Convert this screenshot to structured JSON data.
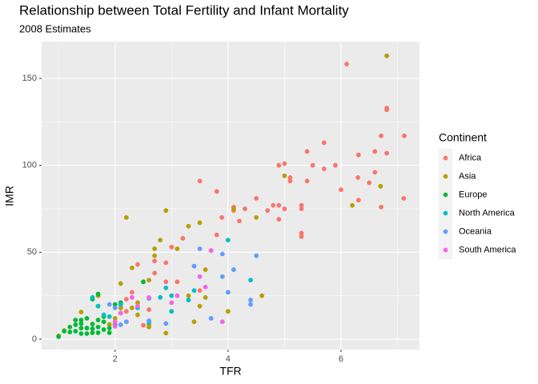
{
  "chart_data": {
    "type": "scatter",
    "title": "Relationship between Total Fertility and Infant Mortality",
    "subtitle": "2008 Estimates",
    "x_label": "TFR",
    "y_label": "IMR",
    "legend_title": "Continent",
    "legend_position": "right",
    "grid": true,
    "xlim": [
      0.7,
      7.39
    ],
    "ylim": [
      -6,
      171.2
    ],
    "xticks": [
      2,
      4,
      6
    ],
    "yticks": [
      0,
      50,
      100,
      150
    ],
    "x_minor_ticks": [
      1,
      3,
      5,
      7
    ],
    "y_minor_ticks": [
      25,
      75,
      125
    ],
    "series": [
      {
        "name": "Africa",
        "color": "#F8766D",
        "x": [
          6.1,
          6.81,
          6.81,
          6.81,
          6.6,
          6.6,
          6.71,
          7.12,
          7.11,
          6.71,
          6.3,
          6.5,
          6.31,
          6.31,
          5.9,
          6.0,
          5.7,
          5.5,
          5.4,
          5.7,
          5.4,
          5.3,
          5.3,
          5.3,
          5.3,
          5.1,
          5.1,
          5.0,
          4.9,
          4.9,
          5.0,
          4.9,
          4.8,
          4.7,
          4.5,
          4.3,
          4.1,
          4.1,
          4.2,
          3.89,
          3.8,
          3.8,
          3.5,
          3.7,
          3.5,
          3.2,
          3.0,
          3.1,
          2.9,
          2.9,
          2.7,
          2.7,
          2.4,
          2.3,
          2.2,
          2.1,
          2.2,
          2.5,
          2.2,
          2.6
        ],
        "y": [
          158.3,
          133,
          132,
          107,
          96,
          108,
          117,
          117,
          81,
          76,
          93,
          90,
          106,
          80,
          100,
          86,
          98,
          100,
          108,
          113,
          91,
          77,
          75,
          61,
          59,
          93,
          91,
          101,
          100,
          77,
          75,
          69,
          77,
          74,
          81,
          75,
          76,
          74,
          68,
          70,
          85,
          60,
          91,
          51,
          28,
          58,
          53,
          33,
          33,
          44,
          45,
          38,
          43,
          27,
          23,
          18,
          10,
          8,
          16,
          17
        ]
      },
      {
        "name": "Asia",
        "color": "#B79F00",
        "x": [
          6.81,
          6.7,
          6.2,
          5.0,
          4.5,
          4.1,
          4.6,
          3.5,
          3.3,
          2.9,
          2.2,
          2.8,
          2.7,
          3.1,
          2.7,
          2.3,
          2.1,
          2.5,
          2.6,
          2.9,
          3.4,
          3.5,
          3.6,
          3.3,
          3.6,
          4.0,
          2.6,
          2.4,
          2.4,
          2.3,
          2.1,
          2.0,
          1.9,
          1.7,
          1.4,
          1.1,
          1.0,
          1.7,
          2.6
        ],
        "y": [
          163,
          88,
          77,
          94,
          70,
          75,
          25,
          67,
          65,
          74,
          70,
          57,
          52,
          52,
          48,
          41,
          32,
          33,
          34,
          3.5,
          10,
          19,
          24,
          25,
          40,
          16,
          8.5,
          14,
          21,
          18,
          18,
          12,
          8.5,
          25,
          15.6,
          5,
          2,
          19,
          7
        ]
      },
      {
        "name": "Europe",
        "color": "#00BA38",
        "x": [
          1.0,
          1.1,
          1.2,
          1.3,
          1.3,
          1.3,
          1.4,
          1.4,
          1.4,
          1.5,
          1.5,
          1.5,
          1.6,
          1.6,
          1.6,
          1.7,
          1.7,
          1.7,
          1.8,
          1.8,
          1.9,
          1.9,
          2.0,
          2.0,
          2.1,
          2.1,
          2.5,
          1.6,
          1.7,
          1.4,
          1.2,
          1.8
        ],
        "y": [
          1.4,
          4.6,
          7,
          11,
          8.3,
          4.6,
          9,
          6.4,
          3.2,
          12,
          6.4,
          3.2,
          8.7,
          6,
          3.7,
          11,
          7,
          3.7,
          10,
          5.5,
          6.4,
          3.7,
          20,
          8.3,
          21,
          15,
          33,
          23,
          26,
          11,
          4.1,
          13
        ]
      },
      {
        "name": "North America",
        "color": "#00BFC4",
        "x": [
          4.0,
          4.4,
          3.4,
          3.3,
          3.0,
          3.0,
          2.9,
          2.8,
          2.6,
          2.6,
          2.4,
          2.1,
          2.1,
          1.9,
          1.8,
          1.7,
          1.6,
          2.0
        ],
        "y": [
          57,
          34,
          28,
          22.5,
          25,
          16,
          29.5,
          24,
          23.5,
          9.7,
          18,
          15,
          20,
          13,
          14,
          19,
          24,
          7.4
        ]
      },
      {
        "name": "Oceania",
        "color": "#619CFF",
        "x": [
          3.9,
          4.1,
          3.9,
          3.5,
          3.4,
          4.5,
          4.4,
          4.4,
          4.0,
          3.7,
          3.1,
          2.9,
          2.6,
          2.2,
          2.0,
          1.9,
          2.1
        ],
        "y": [
          36,
          40,
          49,
          52,
          42,
          48,
          22.5,
          20,
          27,
          12,
          25,
          9,
          10.6,
          10,
          18,
          20,
          8.3
        ]
      },
      {
        "name": "South America",
        "color": "#F564E3",
        "x": [
          3.7,
          3.5,
          3.6,
          3.1,
          3.0,
          2.6,
          2.4,
          2.3,
          2.1,
          2.0,
          2.0,
          3.9
        ],
        "y": [
          51,
          36,
          30,
          25,
          21,
          24,
          19,
          24,
          15,
          10,
          7.4,
          10
        ]
      }
    ]
  }
}
